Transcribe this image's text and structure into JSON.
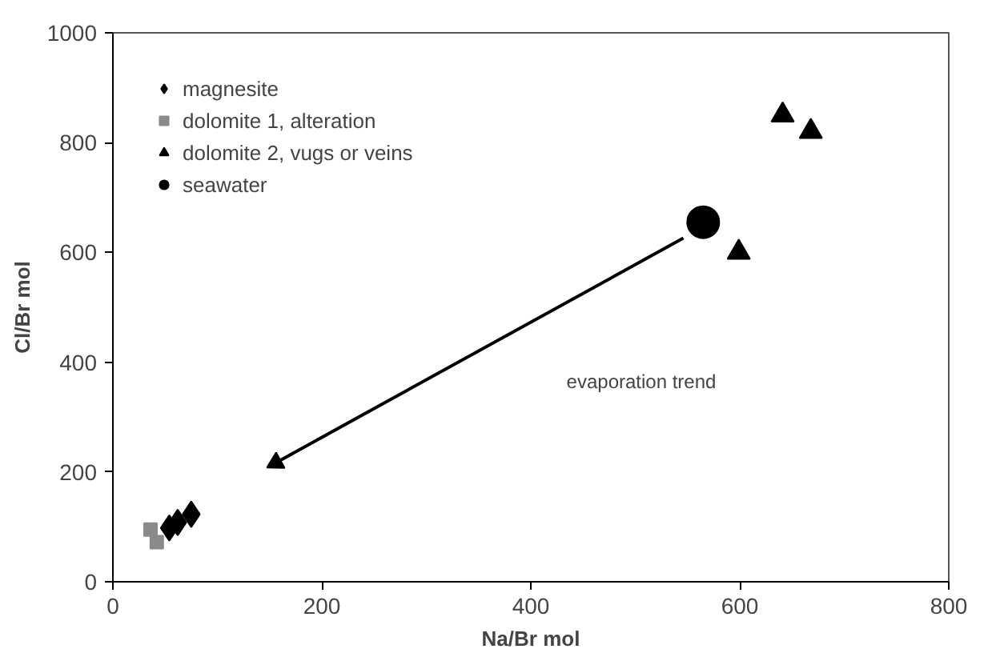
{
  "chart_data": {
    "type": "scatter",
    "xlabel": "Na/Br mol",
    "ylabel": "Cl/Br mol",
    "xlim": [
      0,
      800
    ],
    "ylim": [
      0,
      1000
    ],
    "xticks": [
      0,
      200,
      400,
      600,
      800
    ],
    "yticks": [
      0,
      200,
      400,
      600,
      800,
      1000
    ],
    "grid": false,
    "legend": "top left",
    "series": [
      {
        "name": "magnesite",
        "marker": "diamond",
        "color": "#000000",
        "x": [
          54,
          62,
          75
        ],
        "values": [
          98,
          108,
          123
        ]
      },
      {
        "name": "dolomite 1, alteration",
        "marker": "square",
        "color": "#8a8a8a",
        "x": [
          36,
          42
        ],
        "values": [
          95,
          72
        ]
      },
      {
        "name": "dolomite 2, vugs or veins",
        "marker": "triangle",
        "color": "#000000",
        "x": [
          641,
          668,
          599
        ],
        "values": [
          850,
          820,
          600
        ]
      },
      {
        "name": "seawater",
        "marker": "circle",
        "color": "#000000",
        "x": [
          565
        ],
        "values": [
          655
        ]
      },
      {
        "type": "line",
        "color": "#000000",
        "x": [
          546,
          156
        ],
        "values": [
          626,
          217
        ]
      }
    ],
    "annotations": [
      "evaporation trend"
    ]
  }
}
